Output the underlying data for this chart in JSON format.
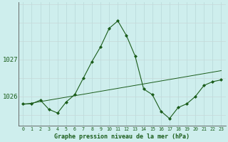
{
  "title": "Graphe pression niveau de la mer (hPa)",
  "bg_color": "#ceeeed",
  "grid_color_v": "#b8d8d8",
  "grid_color_h": "#c8d8d8",
  "line_color": "#1a5c1a",
  "marker_color": "#1a5c1a",
  "yticks": [
    1026,
    1027
  ],
  "ylim": [
    1025.2,
    1028.55
  ],
  "xlim": [
    -0.5,
    23.5
  ],
  "xtick_labels": [
    "0",
    "1",
    "2",
    "3",
    "4",
    "5",
    "6",
    "7",
    "8",
    "9",
    "10",
    "11",
    "12",
    "13",
    "14",
    "15",
    "16",
    "17",
    "18",
    "19",
    "20",
    "21",
    "22",
    "23"
  ],
  "hours": [
    0,
    1,
    2,
    3,
    4,
    5,
    6,
    7,
    8,
    9,
    10,
    11,
    12,
    13,
    14,
    15,
    16,
    17,
    18,
    19,
    20,
    21,
    22,
    23
  ],
  "pressure": [
    1025.8,
    1025.8,
    1025.9,
    1025.65,
    1025.55,
    1025.85,
    1026.05,
    1026.5,
    1026.95,
    1027.35,
    1027.85,
    1028.05,
    1027.65,
    1027.1,
    1026.2,
    1026.05,
    1025.6,
    1025.4,
    1025.7,
    1025.8,
    1026.0,
    1026.3,
    1026.4,
    1026.45
  ],
  "trend": [
    1025.78,
    1025.82,
    1025.86,
    1025.9,
    1025.94,
    1025.98,
    1026.02,
    1026.06,
    1026.1,
    1026.14,
    1026.18,
    1026.22,
    1026.26,
    1026.3,
    1026.34,
    1026.38,
    1026.42,
    1026.46,
    1026.5,
    1026.54,
    1026.58,
    1026.62,
    1026.66,
    1026.7
  ]
}
